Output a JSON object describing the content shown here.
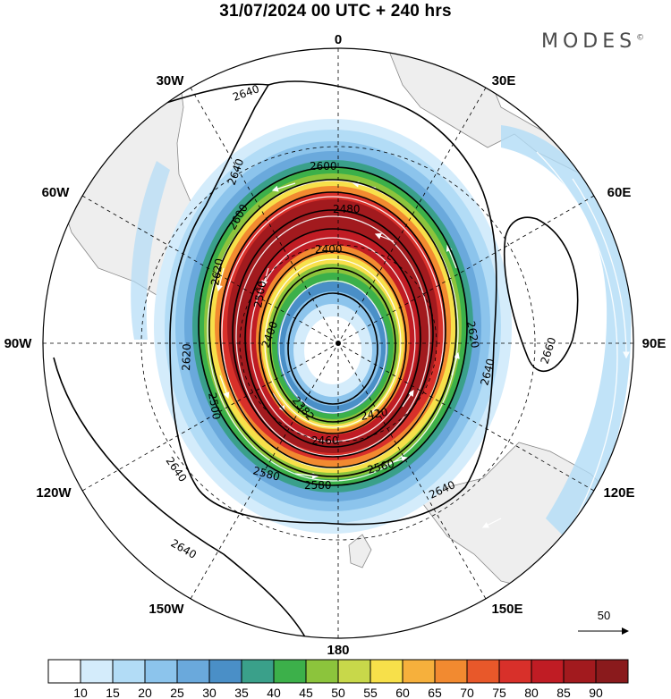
{
  "title": "31/07/2024  00 UTC  + 240 hrs",
  "brand": "MODES",
  "brand_mark": "©",
  "longitude_labels": {
    "n": "0",
    "ne": "30E",
    "e60": "60E",
    "e": "90E",
    "e120": "120E",
    "e150": "150E",
    "s": "180",
    "w150": "150W",
    "w120": "120W",
    "w": "90W",
    "w60": "60W",
    "w30": "30W"
  },
  "contour_labels": [
    "2640",
    "2640",
    "2640",
    "2640",
    "2640",
    "2660",
    "2600",
    "2600",
    "2620",
    "2620",
    "2620",
    "2580",
    "2580",
    "2560",
    "2500",
    "2480",
    "2460",
    "2420",
    "2400",
    "2400",
    "2382",
    "2500"
  ],
  "vector_reference": "50",
  "colorbar": {
    "ticks": [
      "10",
      "15",
      "20",
      "25",
      "30",
      "35",
      "40",
      "45",
      "50",
      "55",
      "60",
      "65",
      "70",
      "75",
      "80",
      "85",
      "90"
    ],
    "colors": [
      "#ffffff",
      "#d4ecfb",
      "#b2dcf6",
      "#8cc4ec",
      "#6aa9dc",
      "#4a8fc7",
      "#3aa08a",
      "#3cb04a",
      "#8cc43c",
      "#c8d84a",
      "#f7e04a",
      "#f6b03c",
      "#f28a30",
      "#e8582a",
      "#d8302a",
      "#c01c24",
      "#a21a1e",
      "#8a1a1c"
    ]
  },
  "colors": {
    "land": "#eeeeee",
    "coast": "#777777",
    "contour": "#000000"
  }
}
